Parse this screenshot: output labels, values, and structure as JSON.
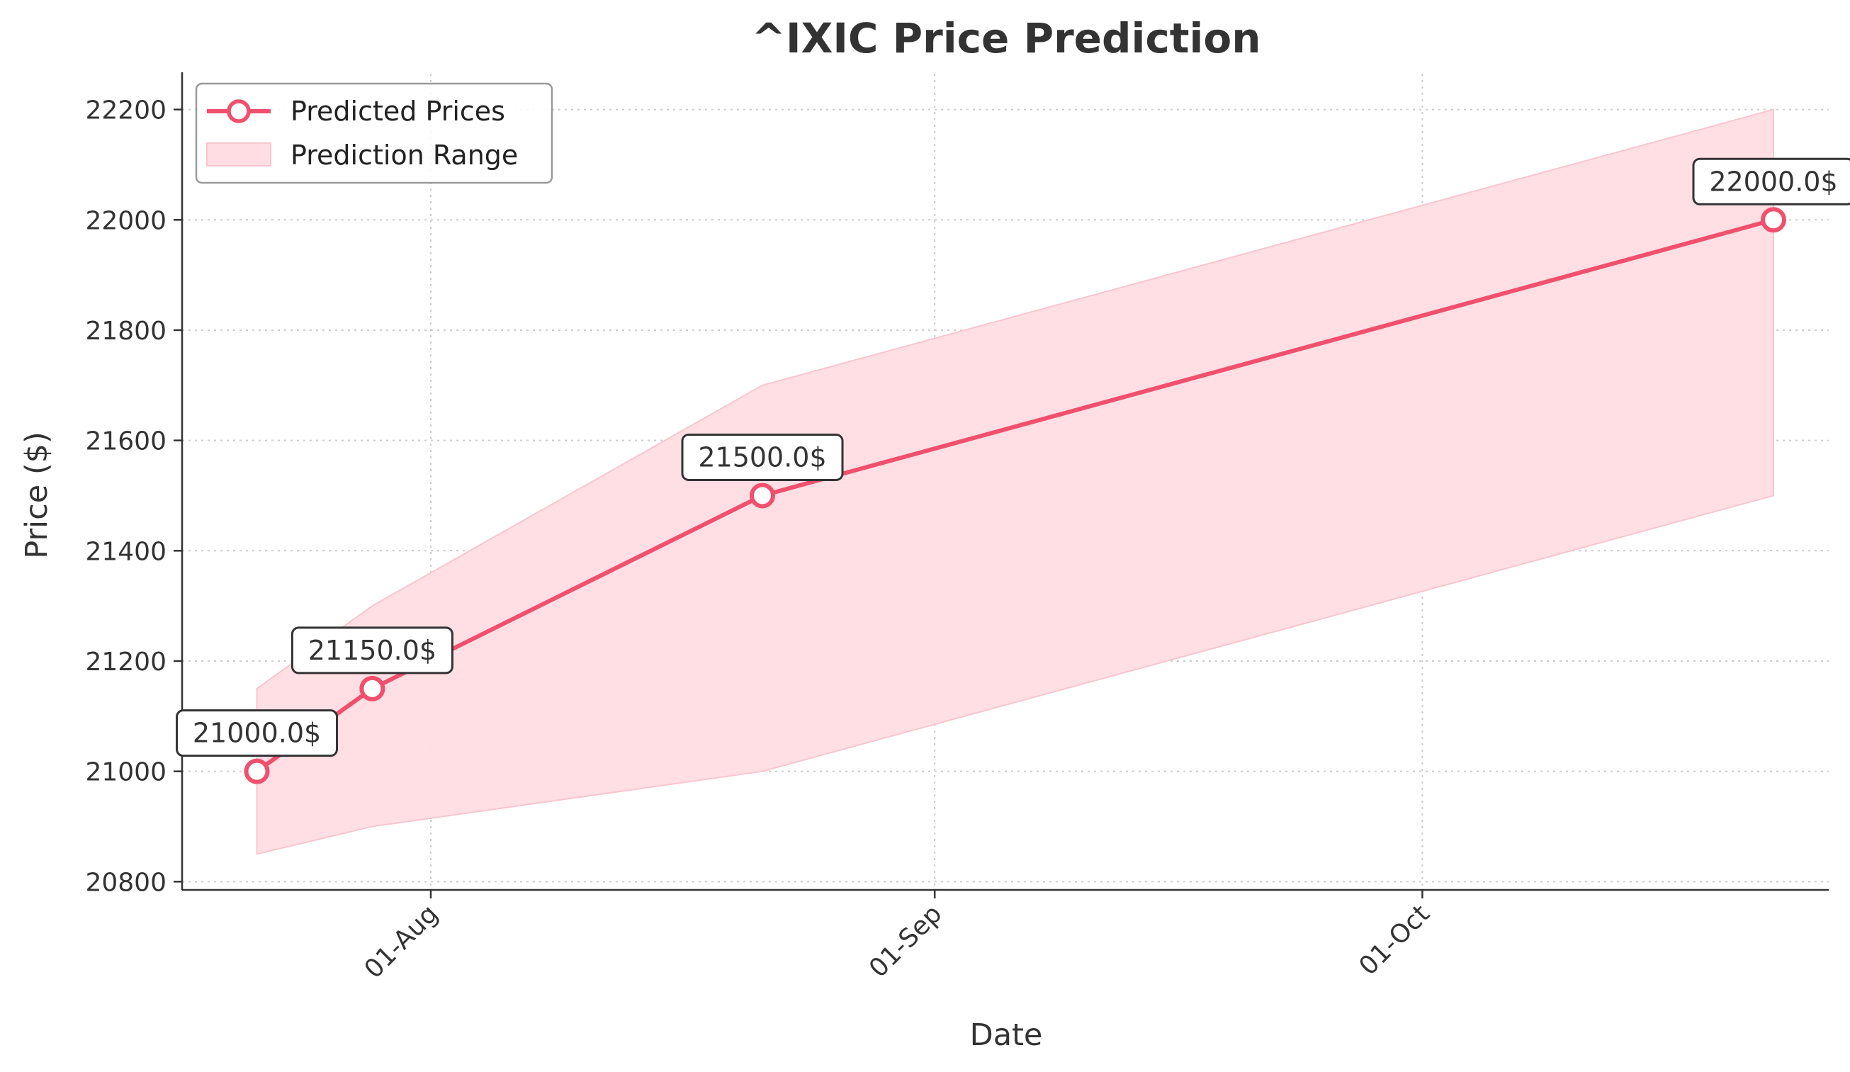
{
  "chart_data": {
    "type": "line",
    "title": "^IXIC Price Prediction",
    "xlabel": "Date",
    "ylabel": "Price ($)",
    "x_ticks": [
      {
        "label": "01-Aug",
        "day": 31
      },
      {
        "label": "01-Sep",
        "day": 62
      },
      {
        "label": "01-Oct",
        "day": 92
      }
    ],
    "x_range_days": [
      15.7,
      117
    ],
    "ylim": [
      20785,
      22265
    ],
    "y_ticks": [
      20800,
      21000,
      21200,
      21400,
      21600,
      21800,
      22000,
      22200
    ],
    "series": [
      {
        "name": "Predicted Prices",
        "color": "#f0506e",
        "points": [
          {
            "day": 20.3,
            "value": 21000.0,
            "label": "21000.0$"
          },
          {
            "day": 27.4,
            "value": 21150.0,
            "label": "21150.0$"
          },
          {
            "day": 51.4,
            "value": 21500.0,
            "label": "21500.0$"
          },
          {
            "day": 113.6,
            "value": 22000.0,
            "label": "22000.0$"
          }
        ]
      }
    ],
    "range": {
      "name": "Prediction Range",
      "color": "#ffdde3",
      "points": [
        {
          "day": 20.3,
          "low": 20850,
          "high": 21150
        },
        {
          "day": 27.4,
          "low": 20900,
          "high": 21300
        },
        {
          "day": 51.4,
          "low": 21000,
          "high": 21700
        },
        {
          "day": 113.6,
          "low": 21500,
          "high": 22200
        }
      ]
    },
    "grid": true,
    "legend_position": "top-left"
  }
}
